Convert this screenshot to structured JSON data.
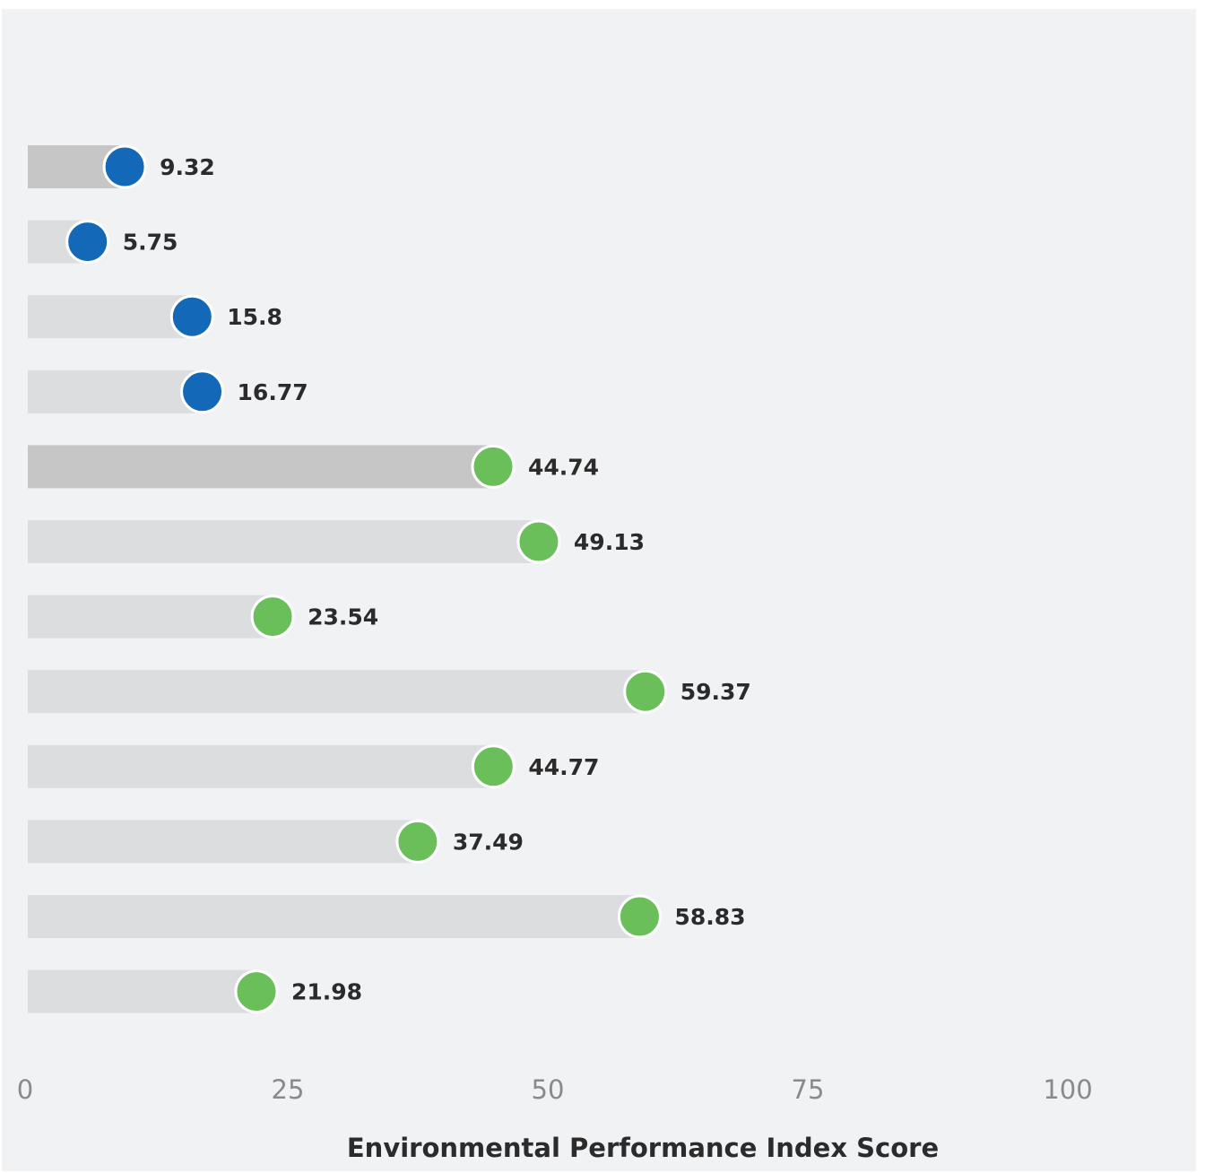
{
  "chart_data": {
    "type": "bar",
    "title": "",
    "xlabel": "Environmental Performance Index Score",
    "ylabel": "",
    "xlim": [
      0,
      100
    ],
    "xticks": [
      0,
      25,
      50,
      75,
      100
    ],
    "xtick_labels": [
      "0",
      "25",
      "50",
      "75",
      "100"
    ],
    "orientation": "horizontal",
    "grid": false,
    "values": [
      9.32,
      5.75,
      15.8,
      16.77,
      44.74,
      49.13,
      23.54,
      59.37,
      44.77,
      37.49,
      58.83,
      21.98
    ],
    "value_labels": [
      "9.32",
      "5.75",
      "15.8",
      "16.77",
      "44.74",
      "49.13",
      "23.54",
      "59.37",
      "44.77",
      "37.49",
      "58.83",
      "21.98"
    ],
    "dot_colors": [
      "#1468b8",
      "#1468b8",
      "#1468b8",
      "#1468b8",
      "#6abf5a",
      "#6abf5a",
      "#6abf5a",
      "#6abf5a",
      "#6abf5a",
      "#6abf5a",
      "#6abf5a",
      "#6abf5a"
    ],
    "bar_colors": [
      "#c6c6c6",
      "#dcdddf",
      "#dcdddf",
      "#dcdddf",
      "#c6c6c6",
      "#dcdddf",
      "#dcdddf",
      "#dcdddf",
      "#dcdddf",
      "#dcdddf",
      "#dcdddf",
      "#dcdddf"
    ]
  }
}
